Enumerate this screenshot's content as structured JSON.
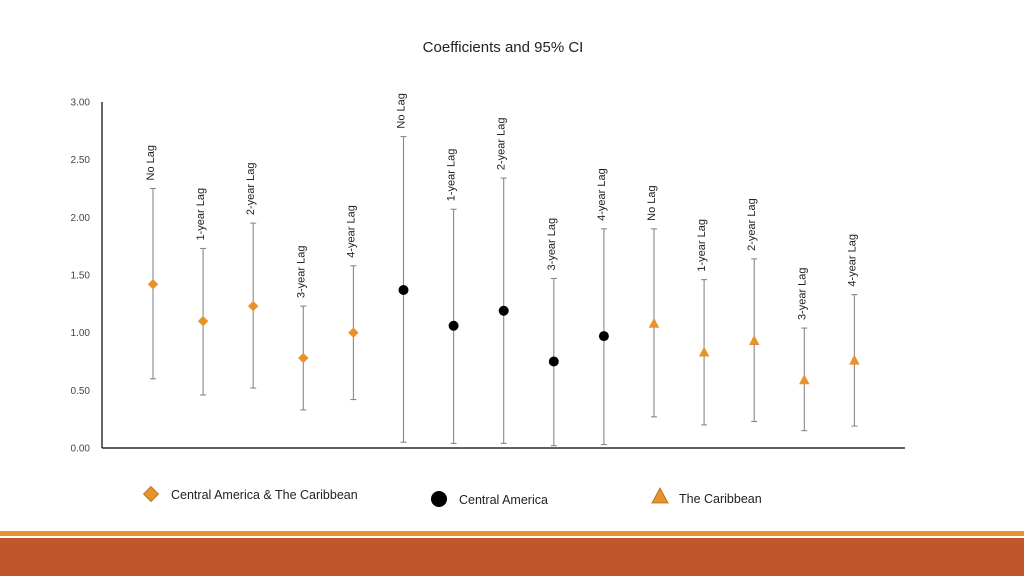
{
  "chart_data": {
    "type": "scatter",
    "title": "Coefficients and 95% CI",
    "xlabel": "",
    "ylabel": "",
    "ylim": [
      0,
      3
    ],
    "y_ticks": [
      "0.00",
      "0.50",
      "1.00",
      "1.50",
      "2.00",
      "2.50",
      "3.00"
    ],
    "error_bars": true,
    "grid": false,
    "legend_position": "bottom",
    "series": [
      {
        "name": "Central America & The Caribbean",
        "marker": "diamond",
        "color": "#e8922b",
        "points": [
          {
            "label": "No Lag",
            "value": 1.42,
            "ci_low": 0.6,
            "ci_high": 2.25
          },
          {
            "label": "1-year Lag",
            "value": 1.1,
            "ci_low": 0.46,
            "ci_high": 1.73
          },
          {
            "label": "2-year Lag",
            "value": 1.23,
            "ci_low": 0.52,
            "ci_high": 1.95
          },
          {
            "label": "3-year Lag",
            "value": 0.78,
            "ci_low": 0.33,
            "ci_high": 1.23
          },
          {
            "label": "4-year Lag",
            "value": 1.0,
            "ci_low": 0.42,
            "ci_high": 1.58
          }
        ]
      },
      {
        "name": "Central America",
        "marker": "circle",
        "color": "#000000",
        "points": [
          {
            "label": "No Lag",
            "value": 1.37,
            "ci_low": 0.05,
            "ci_high": 2.7
          },
          {
            "label": "1-year Lag",
            "value": 1.06,
            "ci_low": 0.04,
            "ci_high": 2.07
          },
          {
            "label": "2-year Lag",
            "value": 1.19,
            "ci_low": 0.04,
            "ci_high": 2.34
          },
          {
            "label": "3-year Lag",
            "value": 0.75,
            "ci_low": 0.02,
            "ci_high": 1.47
          },
          {
            "label": "4-year Lag",
            "value": 0.97,
            "ci_low": 0.03,
            "ci_high": 1.9
          }
        ]
      },
      {
        "name": "The Caribbean",
        "marker": "triangle",
        "color": "#e8922b",
        "points": [
          {
            "label": "No Lag",
            "value": 1.08,
            "ci_low": 0.27,
            "ci_high": 1.9
          },
          {
            "label": "1-year Lag",
            "value": 0.83,
            "ci_low": 0.2,
            "ci_high": 1.46
          },
          {
            "label": "2-year Lag",
            "value": 0.93,
            "ci_low": 0.23,
            "ci_high": 1.64
          },
          {
            "label": "3-year Lag",
            "value": 0.59,
            "ci_low": 0.15,
            "ci_high": 1.04
          },
          {
            "label": "4-year Lag",
            "value": 0.76,
            "ci_low": 0.19,
            "ci_high": 1.33
          }
        ]
      }
    ]
  },
  "colors": {
    "accent_orange": "#e8922b",
    "footer_band": "#c0562c",
    "axis": "#000000",
    "whisker": "#888888"
  }
}
